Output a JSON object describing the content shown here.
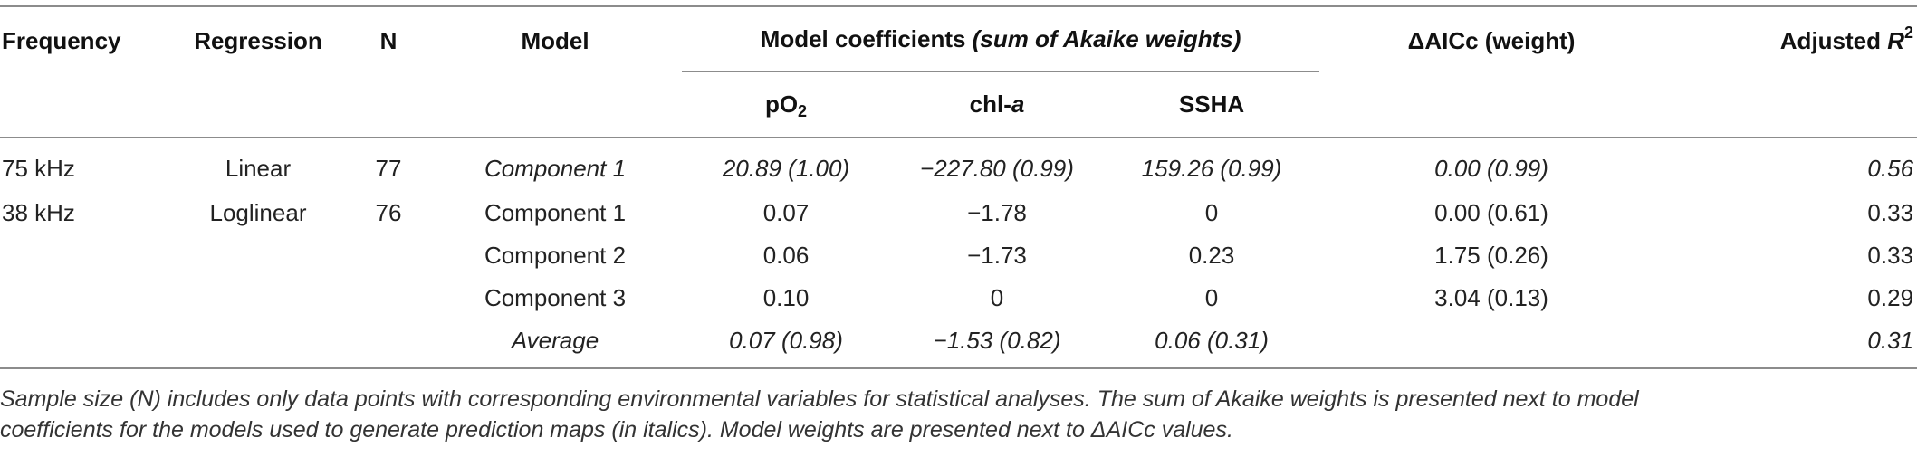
{
  "headers": {
    "frequency": "Frequency",
    "regression": "Regression",
    "n": "N",
    "model": "Model",
    "coef_group_a": "Model coefficients ",
    "coef_group_b": "(sum of Akaike weights)",
    "delta_aicc": "ΔAICc (weight)",
    "adj_r2_prefix": "Adjusted ",
    "adj_r2_var": "R",
    "adj_r2_sup": "2",
    "po2_base": "pO",
    "po2_sub": "2",
    "chla_base": "chl-",
    "chla_var": "a",
    "ssha": "SSHA"
  },
  "rows": [
    {
      "frequency": "75 kHz",
      "regression": "Linear",
      "n": "77",
      "model": "Component 1",
      "po2": "20.89 (1.00)",
      "chla": "−227.80 (0.99)",
      "ssha": "159.26 (0.99)",
      "delta": "0.00 (0.99)",
      "r2": "0.56"
    },
    {
      "frequency": "38 kHz",
      "regression": "Loglinear",
      "n": "76",
      "model": "Component 1",
      "po2": "0.07",
      "chla": "−1.78",
      "ssha": "0",
      "delta": "0.00 (0.61)",
      "r2": "0.33"
    },
    {
      "frequency": "",
      "regression": "",
      "n": "",
      "model": "Component 2",
      "po2": "0.06",
      "chla": "−1.73",
      "ssha": "0.23",
      "delta": "1.75 (0.26)",
      "r2": "0.33"
    },
    {
      "frequency": "",
      "regression": "",
      "n": "",
      "model": "Component 3",
      "po2": "0.10",
      "chla": "0",
      "ssha": "0",
      "delta": "3.04 (0.13)",
      "r2": "0.29"
    },
    {
      "frequency": "",
      "regression": "",
      "n": "",
      "model": "Average",
      "po2": "0.07 (0.98)",
      "chla": "−1.53 (0.82)",
      "ssha": "0.06 (0.31)",
      "delta": "",
      "r2": "0.31"
    }
  ],
  "footnote": {
    "line1": "Sample size (N) includes only data points with corresponding environmental variables for statistical analyses. The sum of Akaike weights is presented next to model",
    "line2": "coefficients for the models used to generate prediction maps (in italics). Model weights are presented next to ΔAICc values."
  }
}
